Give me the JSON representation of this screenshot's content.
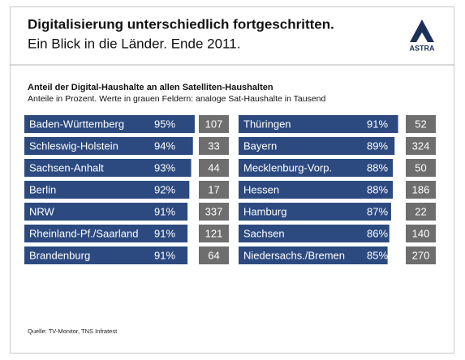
{
  "header": {
    "title": "Digitalisierung unterschiedlich fortgeschritten.",
    "subtitle": "Ein Blick in die Länder. Ende 2011.",
    "logo": "ASTRA"
  },
  "caption": {
    "title": "Anteil der Digital-Haushalte  an allen Satelliten-Haushalten",
    "note": "Anteile in Prozent.  Werte in grauen Feldern:  analoge Sat-Haushalte  in Tausend"
  },
  "source": "Quelle: TV-Monitor,  TNS Infratest",
  "chart_data": [
    {
      "type": "bar",
      "color": "#2c4a80",
      "categories": [
        "Baden-Württemberg",
        "Schleswig-Holstein",
        "Sachsen-Anhalt",
        "Berlin",
        "NRW",
        "Rheinland-Pf./Saarland",
        "Brandenburg"
      ],
      "values": [
        95,
        94,
        93,
        92,
        91,
        91,
        91
      ],
      "value_labels": [
        "95%",
        "94%",
        "93%",
        "92%",
        "91%",
        "91%",
        "91%"
      ],
      "analog": [
        107,
        33,
        44,
        17,
        337,
        121,
        64
      ]
    },
    {
      "type": "bar",
      "color": "#2c4a80",
      "categories": [
        "Thüringen",
        "Bayern",
        "Mecklenburg-Vorp.",
        "Hessen",
        "Hamburg",
        "Sachsen",
        "Niedersachs./Bremen"
      ],
      "values": [
        91,
        89,
        88,
        88,
        87,
        86,
        85
      ],
      "value_labels": [
        "91%",
        "89%",
        "88%",
        "88%",
        "87%",
        "86%",
        "85%"
      ],
      "analog": [
        52,
        324,
        50,
        186,
        22,
        140,
        270
      ]
    }
  ]
}
